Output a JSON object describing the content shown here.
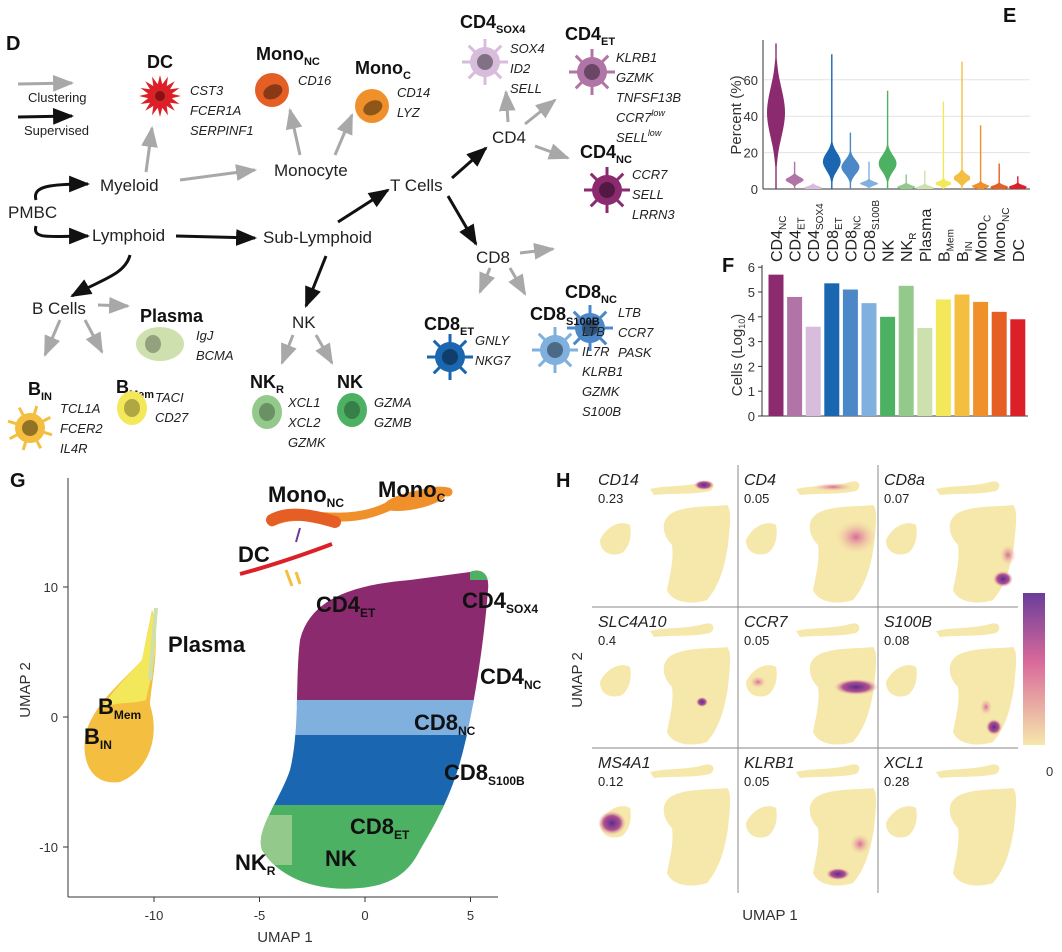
{
  "panels": {
    "D": "D",
    "E": "E",
    "F": "F",
    "G": "G",
    "H": "H"
  },
  "diagram": {
    "legend": {
      "clustering": "Clustering",
      "supervised": "Supervised"
    },
    "nodes": {
      "pmbc": "PMBC",
      "myeloid": "Myeloid",
      "lymphoid": "Lymphoid",
      "monocyte": "Monocyte",
      "sub_lymphoid": "Sub-Lymphoid",
      "t_cells": "T Cells",
      "cd4": "CD4",
      "cd8": "CD8",
      "b_cells": "B Cells",
      "nk": "NK"
    },
    "cell_types": [
      {
        "name": "DC",
        "sub": "",
        "color": "#dc2027",
        "markers": [
          {
            "t": "CST3"
          },
          {
            "t": "FCER1A"
          },
          {
            "t": "SERPINF1"
          }
        ]
      },
      {
        "name": "Mono",
        "sub": "NC",
        "color": "#e55f25",
        "markers": [
          {
            "t": "CD16"
          }
        ]
      },
      {
        "name": "Mono",
        "sub": "C",
        "color": "#f0902a",
        "markers": [
          {
            "t": "CD14"
          },
          {
            "t": "LYZ"
          }
        ]
      },
      {
        "name": "CD4",
        "sub": "SOX4",
        "color": "#d7bcdc",
        "markers": [
          {
            "t": "SOX4"
          },
          {
            "t": "ID2"
          },
          {
            "t": "SELL"
          }
        ]
      },
      {
        "name": "CD4",
        "sub": "ET",
        "color": "#b174a6",
        "markers": [
          {
            "t": "KLRB1"
          },
          {
            "t": "GZMK"
          },
          {
            "t": "TNFSF13B"
          },
          {
            "t": "CCR7",
            "sup": "low"
          },
          {
            "t": "SELL",
            "sup": "low"
          }
        ]
      },
      {
        "name": "CD4",
        "sub": "NC",
        "color": "#8b2a6e",
        "markers": [
          {
            "t": "CCR7"
          },
          {
            "t": "SELL"
          },
          {
            "t": "LRRN3"
          }
        ]
      },
      {
        "name": "CD8",
        "sub": "NC",
        "color": "#4c88c8",
        "markers": [
          {
            "t": "LTB"
          },
          {
            "t": "CCR7"
          },
          {
            "t": "PASK"
          }
        ]
      },
      {
        "name": "CD8",
        "sub": "S100B",
        "color": "#7fb0de",
        "markers": [
          {
            "t": "LTB"
          },
          {
            "t": "IL7R"
          },
          {
            "t": "KLRB1"
          },
          {
            "t": "GZMK"
          },
          {
            "t": "S100B"
          }
        ]
      },
      {
        "name": "CD8",
        "sub": "ET",
        "color": "#1a66b0",
        "markers": [
          {
            "t": "GNLY"
          },
          {
            "t": "NKG7"
          }
        ]
      },
      {
        "name": "Plasma",
        "sub": "",
        "color": "#cde0ae",
        "markers": [
          {
            "t": "IgJ"
          },
          {
            "t": "BCMA"
          }
        ]
      },
      {
        "name": "B",
        "sub": "Mem",
        "color": "#f3e85a",
        "markers": [
          {
            "t": "TACI"
          },
          {
            "t": "CD27"
          }
        ]
      },
      {
        "name": "B",
        "sub": "IN",
        "color": "#f4bf40",
        "markers": [
          {
            "t": "TCL1A"
          },
          {
            "t": "FCER2"
          },
          {
            "t": "IL4R"
          }
        ]
      },
      {
        "name": "NK",
        "sub": "R",
        "color": "#93c98a",
        "markers": [
          {
            "t": "XCL1"
          },
          {
            "t": "XCL2"
          },
          {
            "t": "GZMK"
          }
        ]
      },
      {
        "name": "NK",
        "sub": "",
        "color": "#4db164",
        "markers": [
          {
            "t": "GZMA"
          },
          {
            "t": "GZMB"
          }
        ]
      }
    ]
  },
  "chart_data": [
    {
      "panel": "E",
      "type": "violin",
      "ylabel": "Percent (%)",
      "yticks": [
        0,
        20,
        40,
        60
      ],
      "ylim": [
        0,
        80
      ],
      "grid": true,
      "categories": [
        {
          "main": "CD4",
          "sub": "NC",
          "color": "#8b2a6e",
          "median": 42,
          "max": 80
        },
        {
          "main": "CD4",
          "sub": "ET",
          "color": "#b174a6",
          "median": 5,
          "max": 15
        },
        {
          "main": "CD4",
          "sub": "SOX4",
          "color": "#d7bcdc",
          "median": 0.5,
          "max": 3
        },
        {
          "main": "CD8",
          "sub": "ET",
          "color": "#1a66b0",
          "median": 15,
          "max": 74
        },
        {
          "main": "CD8",
          "sub": "NC",
          "color": "#4c88c8",
          "median": 12,
          "max": 31
        },
        {
          "main": "CD8",
          "sub": "S100B",
          "color": "#7fb0de",
          "median": 3,
          "max": 15
        },
        {
          "main": "NK",
          "sub": "",
          "color": "#4db164",
          "median": 14,
          "max": 54
        },
        {
          "main": "NK",
          "sub": "R",
          "color": "#93c98a",
          "median": 1,
          "max": 8
        },
        {
          "main": "Plasma",
          "sub": "",
          "color": "#cde0ae",
          "median": 0.5,
          "max": 10
        },
        {
          "main": "B",
          "sub": "Mem",
          "color": "#f3e85a",
          "median": 3,
          "max": 48
        },
        {
          "main": "B",
          "sub": "IN",
          "color": "#f4bf40",
          "median": 6,
          "max": 70
        },
        {
          "main": "Mono",
          "sub": "C",
          "color": "#f0902a",
          "median": 1.5,
          "max": 35
        },
        {
          "main": "Mono",
          "sub": "NC",
          "color": "#e55f25",
          "median": 1,
          "max": 14
        },
        {
          "main": "DC",
          "sub": "",
          "color": "#dc2027",
          "median": 1,
          "max": 7
        }
      ]
    },
    {
      "panel": "F",
      "type": "bar",
      "ylabel": "Cells (Log",
      "ylabel_sub": "10",
      "ylabel_end": ")",
      "yticks": [
        0,
        1,
        2,
        3,
        4,
        5,
        6
      ],
      "ylim": [
        0,
        6
      ],
      "values": [
        5.7,
        4.8,
        3.6,
        5.35,
        5.1,
        4.55,
        4.0,
        5.25,
        3.55,
        4.7,
        4.9,
        4.6,
        4.2,
        3.9
      ]
    },
    {
      "panel": "G",
      "type": "scatter",
      "xlabel": "UMAP 1",
      "ylabel": "UMAP 2",
      "xticks": [
        -10,
        -5,
        0,
        5
      ],
      "yticks": [
        -10,
        0,
        10
      ],
      "cluster_labels": [
        {
          "main": "Mono",
          "sub": "NC"
        },
        {
          "main": "Mono",
          "sub": "C"
        },
        {
          "main": "DC",
          "sub": ""
        },
        {
          "main": "CD4",
          "sub": "ET"
        },
        {
          "main": "CD4",
          "sub": "SOX4"
        },
        {
          "main": "Plasma",
          "sub": ""
        },
        {
          "main": "CD4",
          "sub": "NC"
        },
        {
          "main": "B",
          "sub": "Mem"
        },
        {
          "main": "B",
          "sub": "IN"
        },
        {
          "main": "CD8",
          "sub": "NC"
        },
        {
          "main": "CD8",
          "sub": "S100B"
        },
        {
          "main": "CD8",
          "sub": "ET"
        },
        {
          "main": "NK",
          "sub": ""
        },
        {
          "main": "NK",
          "sub": "R"
        }
      ]
    },
    {
      "panel": "H",
      "type": "heatmap",
      "xlabel": "UMAP 1",
      "ylabel": "UMAP 2",
      "colorbar": {
        "min_label": "0",
        "low_color": "#f6e7ab",
        "mid_color": "#d9699a",
        "high_color": "#6a3d9a"
      },
      "features": [
        {
          "gene": "CD14",
          "value": "0.23"
        },
        {
          "gene": "CD4",
          "value": "0.05"
        },
        {
          "gene": "CD8a",
          "value": "0.07"
        },
        {
          "gene": "SLC4A10",
          "value": "0.4"
        },
        {
          "gene": "CCR7",
          "value": "0.05"
        },
        {
          "gene": "S100B",
          "value": "0.08"
        },
        {
          "gene": "MS4A1",
          "value": "0.12"
        },
        {
          "gene": "KLRB1",
          "value": "0.05"
        },
        {
          "gene": "XCL1",
          "value": "0.28"
        }
      ]
    }
  ]
}
